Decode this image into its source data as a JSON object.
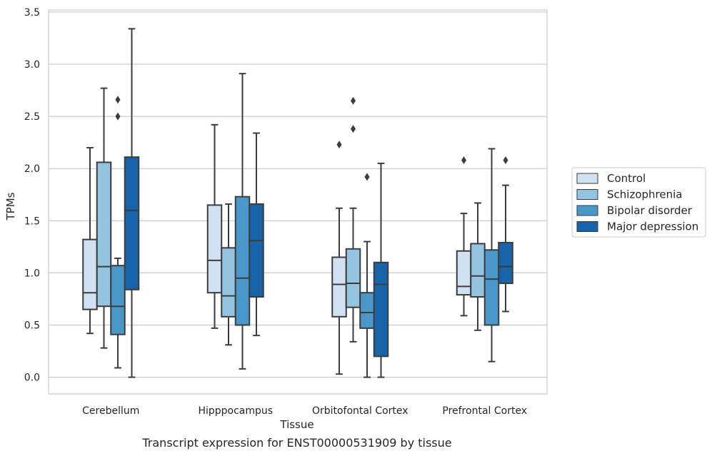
{
  "chart_data": {
    "type": "box",
    "title": "",
    "caption": "Transcript expression for ENST00000531909 by tissue",
    "xlabel": "Tissue",
    "ylabel": "TPMs",
    "ylim": [
      -0.16,
      3.52
    ],
    "yticks": [
      0.0,
      0.5,
      1.0,
      1.5,
      2.0,
      2.5,
      3.0,
      3.5
    ],
    "ytick_labels": [
      "0.0",
      "0.5",
      "1.0",
      "1.5",
      "2.0",
      "2.5",
      "3.0",
      "3.5"
    ],
    "grid": "horizontal",
    "legend_position": "right",
    "categories": [
      "Cerebellum",
      "Hipppocampus",
      "Orbitofontal Cortex",
      "Prefrontal Cortex"
    ],
    "series": [
      {
        "name": "Control",
        "color": "#d0e1f2",
        "boxes": [
          {
            "whislo": 0.42,
            "q1": 0.65,
            "med": 0.81,
            "q3": 1.32,
            "whishi": 2.2,
            "fliers": []
          },
          {
            "whislo": 0.47,
            "q1": 0.81,
            "med": 1.12,
            "q3": 1.65,
            "whishi": 2.42,
            "fliers": []
          },
          {
            "whislo": 0.03,
            "q1": 0.58,
            "med": 0.89,
            "q3": 1.15,
            "whishi": 1.62,
            "fliers": [
              2.23
            ]
          },
          {
            "whislo": 0.59,
            "q1": 0.79,
            "med": 0.87,
            "q3": 1.21,
            "whishi": 1.57,
            "fliers": [
              2.08
            ]
          }
        ]
      },
      {
        "name": "Schizophrenia",
        "color": "#94c4df",
        "boxes": [
          {
            "whislo": 0.28,
            "q1": 0.68,
            "med": 1.06,
            "q3": 2.06,
            "whishi": 2.77,
            "fliers": []
          },
          {
            "whislo": 0.31,
            "q1": 0.58,
            "med": 0.78,
            "q3": 1.24,
            "whishi": 1.66,
            "fliers": []
          },
          {
            "whislo": 0.34,
            "q1": 0.67,
            "med": 0.9,
            "q3": 1.23,
            "whishi": 1.62,
            "fliers": [
              2.38,
              2.65
            ]
          },
          {
            "whislo": 0.45,
            "q1": 0.77,
            "med": 0.97,
            "q3": 1.28,
            "whishi": 1.67,
            "fliers": []
          }
        ]
      },
      {
        "name": "Bipolar disorder",
        "color": "#4a98c9",
        "boxes": [
          {
            "whislo": 0.09,
            "q1": 0.41,
            "med": 0.68,
            "q3": 1.07,
            "whishi": 1.14,
            "fliers": [
              2.5,
              2.66
            ]
          },
          {
            "whislo": 0.08,
            "q1": 0.5,
            "med": 0.95,
            "q3": 1.73,
            "whishi": 2.91,
            "fliers": []
          },
          {
            "whislo": 0.0,
            "q1": 0.47,
            "med": 0.62,
            "q3": 0.81,
            "whishi": 1.3,
            "fliers": [
              1.92
            ]
          },
          {
            "whislo": 0.15,
            "q1": 0.5,
            "med": 0.94,
            "q3": 1.22,
            "whishi": 2.19,
            "fliers": []
          }
        ]
      },
      {
        "name": "Major depression",
        "color": "#1764ab",
        "boxes": [
          {
            "whislo": 0.0,
            "q1": 0.84,
            "med": 1.6,
            "q3": 2.11,
            "whishi": 3.34,
            "fliers": []
          },
          {
            "whislo": 0.4,
            "q1": 0.77,
            "med": 1.31,
            "q3": 1.66,
            "whishi": 2.34,
            "fliers": []
          },
          {
            "whislo": 0.0,
            "q1": 0.2,
            "med": 0.89,
            "q3": 1.1,
            "whishi": 2.05,
            "fliers": []
          },
          {
            "whislo": 0.63,
            "q1": 0.9,
            "med": 1.06,
            "q3": 1.29,
            "whishi": 1.84,
            "fliers": [
              2.08
            ]
          }
        ]
      }
    ]
  }
}
